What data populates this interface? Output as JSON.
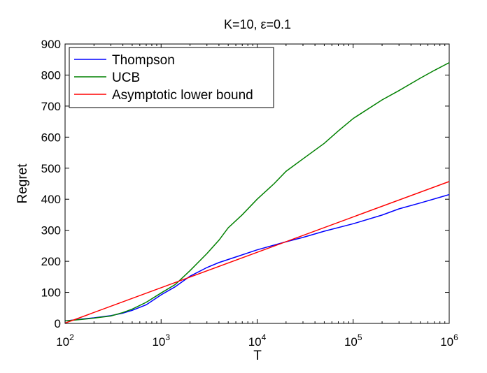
{
  "chart_data": {
    "type": "line",
    "title": "K=10, ε=0.1",
    "xlabel": "T",
    "ylabel": "Regret",
    "xscale": "log",
    "xlim": [
      100,
      1000000
    ],
    "ylim": [
      0,
      900
    ],
    "xticks": [
      {
        "base": "10",
        "exp": "2",
        "value": 100
      },
      {
        "base": "10",
        "exp": "3",
        "value": 1000
      },
      {
        "base": "10",
        "exp": "4",
        "value": 10000
      },
      {
        "base": "10",
        "exp": "5",
        "value": 100000
      },
      {
        "base": "10",
        "exp": "6",
        "value": 1000000
      }
    ],
    "yticks": [
      "0",
      "100",
      "200",
      "300",
      "400",
      "500",
      "600",
      "700",
      "800",
      "900"
    ],
    "grid": false,
    "legend_position": "top-left",
    "series": [
      {
        "name": "Thompson",
        "color": "#0000ff",
        "points": [
          [
            100,
            8
          ],
          [
            150,
            14
          ],
          [
            200,
            18
          ],
          [
            300,
            25
          ],
          [
            400,
            33
          ],
          [
            500,
            42
          ],
          [
            700,
            60
          ],
          [
            1000,
            92
          ],
          [
            1400,
            118
          ],
          [
            2000,
            152
          ],
          [
            3000,
            180
          ],
          [
            4000,
            196
          ],
          [
            6000,
            214
          ],
          [
            10000,
            237
          ],
          [
            20000,
            263
          ],
          [
            30000,
            277
          ],
          [
            50000,
            297
          ],
          [
            100000,
            321
          ],
          [
            200000,
            349
          ],
          [
            300000,
            369
          ],
          [
            500000,
            388
          ],
          [
            1000000,
            415
          ]
        ]
      },
      {
        "name": "UCB",
        "color": "#008000",
        "points": [
          [
            100,
            8
          ],
          [
            150,
            13
          ],
          [
            200,
            17
          ],
          [
            300,
            24
          ],
          [
            400,
            35
          ],
          [
            500,
            46
          ],
          [
            700,
            68
          ],
          [
            1000,
            98
          ],
          [
            1400,
            125
          ],
          [
            2000,
            170
          ],
          [
            3000,
            225
          ],
          [
            4000,
            268
          ],
          [
            5000,
            308
          ],
          [
            7000,
            350
          ],
          [
            10000,
            400
          ],
          [
            15000,
            450
          ],
          [
            20000,
            490
          ],
          [
            30000,
            530
          ],
          [
            50000,
            580
          ],
          [
            70000,
            620
          ],
          [
            100000,
            660
          ],
          [
            200000,
            720
          ],
          [
            300000,
            750
          ],
          [
            500000,
            790
          ],
          [
            700000,
            815
          ],
          [
            1000000,
            840
          ]
        ]
      },
      {
        "name": "Asymptotic lower bound",
        "color": "#ff0000",
        "points": [
          [
            100,
            1
          ],
          [
            1000000,
            457
          ]
        ]
      }
    ]
  }
}
